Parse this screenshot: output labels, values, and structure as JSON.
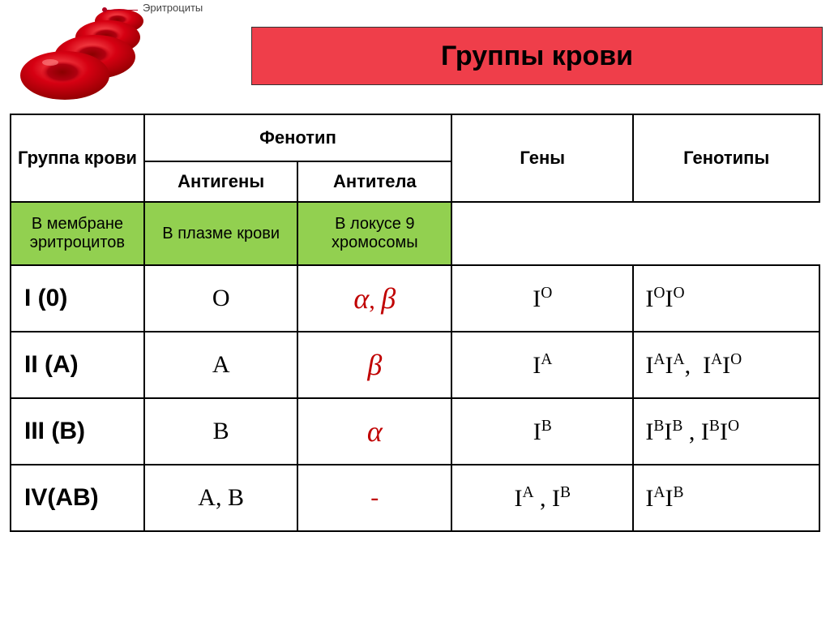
{
  "illustration": {
    "label": "Эритроциты",
    "cell_fill": "#d60012",
    "cell_shadow": "#8a0000",
    "cell_highlight": "#ff4d4d"
  },
  "title": "Группы крови",
  "title_band_color": "#ef3e4a",
  "green_row_color": "#92d050",
  "red_text_color": "#c00000",
  "headers": {
    "group": "Группа крови",
    "phenotype": "Фенотип",
    "antigens": "Антигены",
    "antibodies": "Антитела",
    "genes": "Гены",
    "genotypes": "Генотипы"
  },
  "subheaders": {
    "antigens_note": "В мембране эритроцитов",
    "antibodies_note": "В плазме крови",
    "genes_note": "В локусе 9 хромосомы"
  },
  "rows": [
    {
      "group": "I (0)",
      "antigen": "O",
      "antibody_html": "<span class='serif-it'>α</span>, <span class='serif-it'>β</span>",
      "gene_html": "I<sup>O</sup>",
      "genotype_html": "I<sup>O</sup>I<sup>O</sup>"
    },
    {
      "group": "II (A)",
      "antigen": "A",
      "antibody_html": "<span class='serif-it'>β</span>",
      "gene_html": "I<sup>A</sup>",
      "genotype_html": "I<sup>A</sup>I<sup>A</sup>,&nbsp;&nbsp;I<sup>A</sup>I<sup>O</sup>"
    },
    {
      "group": "III (B)",
      "antigen": "B",
      "antibody_html": "<span class='serif-it'>α</span>",
      "gene_html": "I<sup>B</sup>",
      "genotype_html": "I<sup>B</sup>I<sup>B</sup> , I<sup>B</sup>I<sup>O</sup>"
    },
    {
      "group": "IV(AB)",
      "antigen": "A, B",
      "antibody_html": "-",
      "gene_html": "I<sup>A</sup> , I<sup>B</sup>",
      "genotype_html": "I<sup>A</sup>I<sup>B</sup>"
    }
  ]
}
